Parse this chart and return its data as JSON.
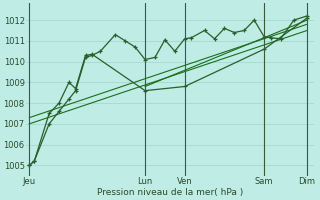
{
  "xlabel": "Pression niveau de la mer( hPa )",
  "background_color": "#c0ece6",
  "grid_color_major": "#a0d4cc",
  "grid_color_minor": "#b8e4de",
  "line_color": "#1a6e1a",
  "dark_line_color": "#2a5e2a",
  "ylim": [
    1004.5,
    1012.8
  ],
  "yticks": [
    1005,
    1006,
    1007,
    1008,
    1009,
    1010,
    1011,
    1012
  ],
  "xlim": [
    0,
    174
  ],
  "day_labels": [
    "Jeu",
    "Lun",
    "Ven",
    "Sam",
    "Dim"
  ],
  "day_positions": [
    2,
    72,
    96,
    144,
    170
  ],
  "vline_positions": [
    2,
    72,
    96,
    144,
    170
  ],
  "series1_x": [
    2,
    5,
    14,
    20,
    26,
    30,
    36,
    40,
    45,
    54,
    60,
    66,
    72,
    78,
    84,
    90,
    96,
    100,
    108,
    114,
    120,
    126,
    132,
    138,
    144,
    148,
    154,
    162,
    170
  ],
  "series1_y": [
    1005.0,
    1005.2,
    1007.0,
    1007.6,
    1008.2,
    1008.6,
    1010.2,
    1010.3,
    1010.5,
    1011.3,
    1011.0,
    1010.7,
    1010.1,
    1010.2,
    1011.05,
    1010.5,
    1011.1,
    1011.15,
    1011.5,
    1011.1,
    1011.6,
    1011.4,
    1011.5,
    1012.0,
    1011.2,
    1011.15,
    1011.1,
    1012.0,
    1012.2
  ],
  "series2_x": [
    2,
    5,
    14,
    20,
    26,
    30,
    36,
    40,
    72,
    96,
    144,
    170
  ],
  "series2_y": [
    1005.0,
    1005.2,
    1007.5,
    1008.0,
    1009.0,
    1008.7,
    1010.3,
    1010.35,
    1008.6,
    1008.8,
    1010.6,
    1012.1
  ],
  "trend1_x": [
    2,
    170
  ],
  "trend1_y": [
    1007.0,
    1011.5
  ],
  "trend2_x": [
    2,
    170
  ],
  "trend2_y": [
    1007.3,
    1011.8
  ],
  "trend3_x": [
    72,
    170
  ],
  "trend3_y": [
    1008.8,
    1012.0
  ]
}
